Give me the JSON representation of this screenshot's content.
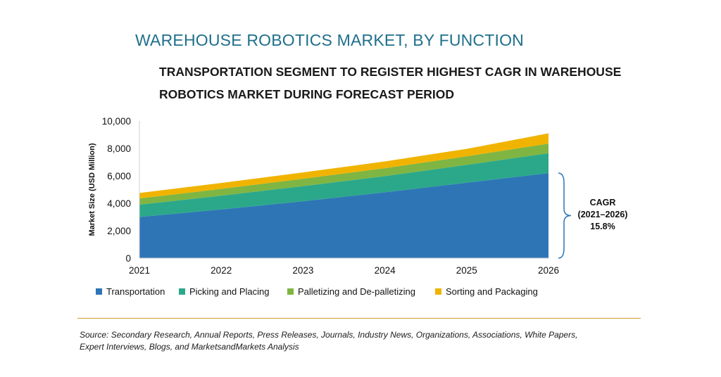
{
  "title": "WAREHOUSE ROBOTICS MARKET, BY FUNCTION",
  "subtitle_line1": "TRANSPORTATION SEGMENT TO REGISTER HIGHEST CAGR IN WAREHOUSE",
  "subtitle_line2": "ROBOTICS MARKET DURING FORECAST PERIOD",
  "source_line1": "Source: Secondary Research, Annual Reports, Press Releases, Journals, Industry News, Organizations, Associations, White Papers,",
  "source_line2": "Expert Interviews, Blogs, and MarketsandMarkets Analysis",
  "cagr_annotation": {
    "line1": "CAGR",
    "line2": "(2021–2026)",
    "line3": "15.8%"
  },
  "chart_data": {
    "type": "area",
    "stacked": true,
    "ylabel": "Market Size (USD Million)",
    "xlabel": "",
    "x": [
      "2021",
      "2022",
      "2023",
      "2024",
      "2025",
      "2026"
    ],
    "ylim": [
      0,
      10000
    ],
    "yticks": [
      0,
      2000,
      4000,
      6000,
      8000,
      10000
    ],
    "ytick_labels": [
      "0",
      "2,000",
      "4,000",
      "6,000",
      "8,000",
      "10,000"
    ],
    "grid": false,
    "legend_position": "bottom",
    "series": [
      {
        "name": "Transportation",
        "color": "#2e75b6",
        "values": [
          3000,
          3550,
          4150,
          4800,
          5500,
          6200
        ]
      },
      {
        "name": "Picking and Placing",
        "color": "#2ba88a",
        "values": [
          900,
          1000,
          1100,
          1180,
          1300,
          1450
        ]
      },
      {
        "name": "Palletizing and De-palletizing",
        "color": "#7fb542",
        "values": [
          450,
          500,
          540,
          580,
          620,
          700
        ]
      },
      {
        "name": "Sorting and Packaging",
        "color": "#f0b400",
        "values": [
          400,
          430,
          460,
          490,
          550,
          750
        ]
      }
    ]
  }
}
